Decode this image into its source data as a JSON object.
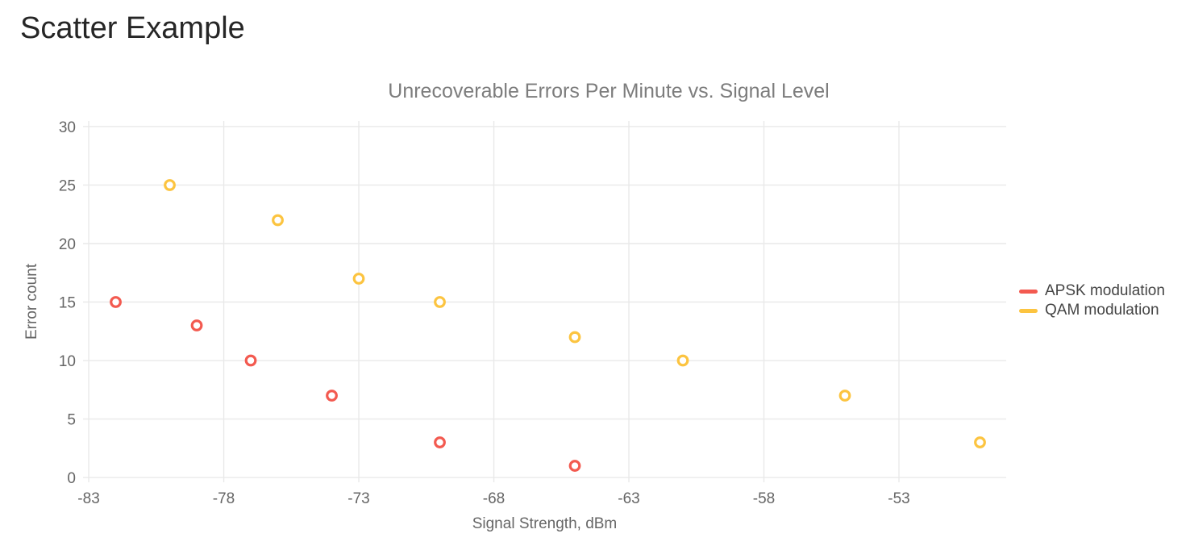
{
  "page": {
    "title": "Scatter Example"
  },
  "chart_data": {
    "type": "scatter",
    "title": "Unrecoverable Errors Per Minute vs. Signal Level",
    "xlabel": "Signal Strength, dBm",
    "ylabel": "Error count",
    "marker": "open-circle",
    "grid": true,
    "background": "#ffffff",
    "grid_color": "#e9e9e9",
    "legend_position": "right-middle",
    "xlim": [
      -83.21,
      -49.03
    ],
    "ylim": [
      -0.41,
      30.48
    ],
    "xticks": [
      -83,
      -78,
      -73,
      -68,
      -63,
      -58,
      -53
    ],
    "yticks": [
      0,
      5,
      10,
      15,
      20,
      25,
      30
    ],
    "series": [
      {
        "name": "APSK modulation",
        "color": "#f35a50",
        "points": [
          [
            -82,
            15
          ],
          [
            -79,
            13
          ],
          [
            -77,
            10
          ],
          [
            -74,
            7
          ],
          [
            -70,
            3
          ],
          [
            -65,
            1
          ]
        ]
      },
      {
        "name": "QAM modulation",
        "color": "#fcc440",
        "points": [
          [
            -80,
            25
          ],
          [
            -76,
            22
          ],
          [
            -73,
            17
          ],
          [
            -70,
            15
          ],
          [
            -65,
            12
          ],
          [
            -61,
            10
          ],
          [
            -55,
            7
          ],
          [
            -50,
            3
          ]
        ]
      }
    ]
  }
}
